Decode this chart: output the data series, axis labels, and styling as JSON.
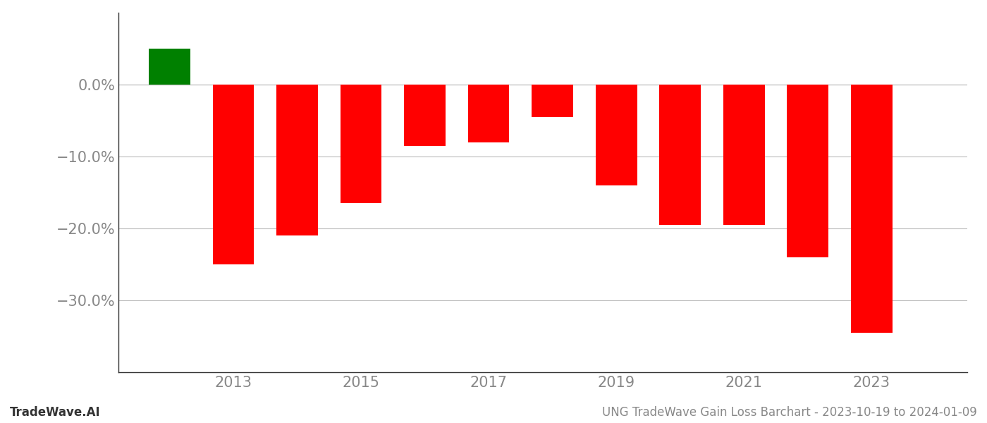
{
  "years": [
    2012,
    2013,
    2014,
    2015,
    2016,
    2017,
    2018,
    2019,
    2020,
    2021,
    2022,
    2023
  ],
  "values": [
    5.0,
    -25.0,
    -21.0,
    -16.5,
    -8.5,
    -8.0,
    -4.5,
    -14.0,
    -19.5,
    -19.5,
    -24.0,
    -34.5
  ],
  "bar_colors": [
    "#008000",
    "#ff0000",
    "#ff0000",
    "#ff0000",
    "#ff0000",
    "#ff0000",
    "#ff0000",
    "#ff0000",
    "#ff0000",
    "#ff0000",
    "#ff0000",
    "#ff0000"
  ],
  "yticks": [
    0.0,
    -10.0,
    -20.0,
    -30.0
  ],
  "ytick_labels": [
    "0.0%",
    "−10.0%",
    "−20.0%",
    "−30.0%"
  ],
  "ylim": [
    -40,
    10
  ],
  "xlim": [
    2011.2,
    2024.5
  ],
  "xticks": [
    2013,
    2015,
    2017,
    2019,
    2021,
    2023
  ],
  "footer_left": "TradeWave.AI",
  "footer_right": "UNG TradeWave Gain Loss Barchart - 2023-10-19 to 2024-01-09",
  "background_color": "#ffffff",
  "grid_color": "#bbbbbb",
  "bar_width": 0.65,
  "tick_color": "#888888",
  "ytick_fontsize": 15,
  "xtick_fontsize": 15,
  "footer_fontsize": 12
}
